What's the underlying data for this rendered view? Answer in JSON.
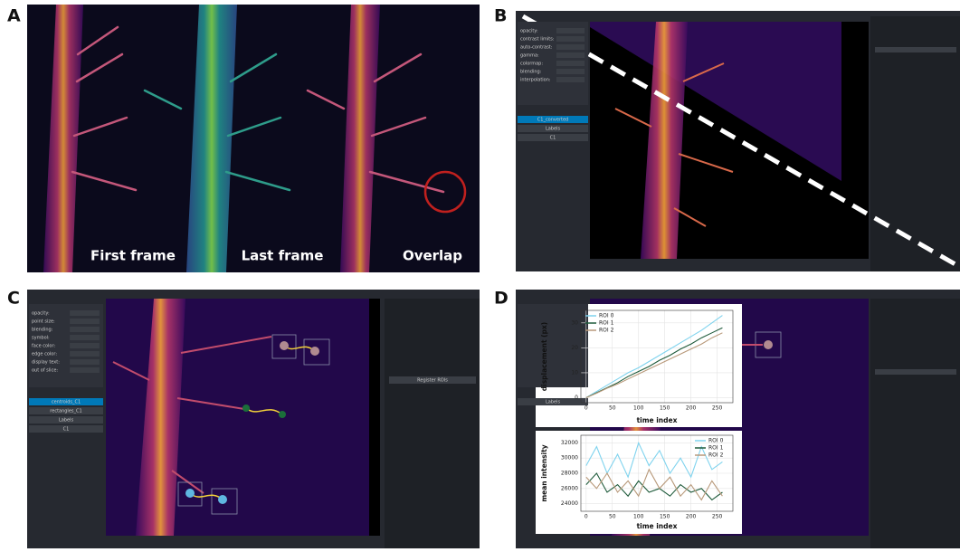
{
  "panel_a": {
    "label": "A",
    "captions": [
      "First frame",
      "Last frame",
      "Overlap"
    ]
  },
  "panel_b": {
    "label": "B",
    "controls": [
      "opacity:",
      "contrast limits:",
      "auto-contrast:",
      "gamma:",
      "colormap:",
      "blending:",
      "interpolation:"
    ],
    "layers": [
      "C1_converted",
      "Labels",
      "C1"
    ]
  },
  "panel_c": {
    "label": "C",
    "controls": [
      "opacity:",
      "point size:",
      "blending:",
      "symbol:",
      "face color:",
      "edge color:",
      "display text:",
      "out of slice:"
    ],
    "layers": [
      "centroids_C1",
      "rectangles_C1",
      "Labels",
      "C1"
    ],
    "button": "Register ROIs"
  },
  "panel_d": {
    "label": "D",
    "layers": [
      "Labels"
    ]
  },
  "chart_data": [
    {
      "type": "line",
      "ylabel": "displacement (px)",
      "xlabel": "time index",
      "x": [
        0,
        20,
        40,
        60,
        80,
        100,
        120,
        140,
        160,
        180,
        200,
        220,
        240,
        260
      ],
      "xlim": [
        -10,
        280
      ],
      "xticks": [
        0,
        50,
        100,
        150,
        200,
        250
      ],
      "ylim": [
        -2,
        35
      ],
      "yticks": [
        0,
        10,
        20,
        30
      ],
      "grid": true,
      "legend": "upper left",
      "series": [
        {
          "name": "ROI 0",
          "color": "#7fd3ee",
          "values": [
            0,
            2.5,
            5,
            7.5,
            10,
            12,
            14.5,
            17,
            19.5,
            22,
            24.5,
            27,
            30,
            33
          ]
        },
        {
          "name": "ROI 1",
          "color": "#1e5a3a",
          "values": [
            0,
            2,
            4,
            6,
            8.5,
            10.5,
            12.5,
            15,
            17,
            19.5,
            21.5,
            24,
            26,
            28
          ]
        },
        {
          "name": "ROI 2",
          "color": "#b8997a",
          "values": [
            0,
            1.8,
            3.8,
            5.5,
            7.5,
            9.5,
            11.5,
            13.5,
            15.5,
            17.5,
            19.5,
            21.5,
            24,
            26
          ]
        }
      ]
    },
    {
      "type": "line",
      "ylabel": "mean intensity",
      "xlabel": "time index",
      "x": [
        0,
        20,
        40,
        60,
        80,
        100,
        120,
        140,
        160,
        180,
        200,
        220,
        240,
        260
      ],
      "xlim": [
        -10,
        280
      ],
      "xticks": [
        0,
        50,
        100,
        150,
        200,
        250
      ],
      "ylim": [
        23000,
        33000
      ],
      "yticks": [
        24000,
        26000,
        28000,
        30000,
        32000
      ],
      "grid": true,
      "legend": "upper right",
      "series": [
        {
          "name": "ROI 0",
          "color": "#7fd3ee",
          "values": [
            29000,
            31500,
            28000,
            30500,
            27500,
            32000,
            29000,
            31000,
            28000,
            30000,
            27500,
            31500,
            28500,
            29500
          ]
        },
        {
          "name": "ROI 1",
          "color": "#1e5a3a",
          "values": [
            26500,
            28000,
            25500,
            26500,
            25000,
            27000,
            25500,
            26000,
            25000,
            26500,
            25500,
            26000,
            24500,
            25500
          ]
        },
        {
          "name": "ROI 2",
          "color": "#b8997a",
          "values": [
            27500,
            26000,
            28000,
            25500,
            27000,
            25000,
            28500,
            26000,
            27500,
            25000,
            26500,
            24500,
            27000,
            25000
          ]
        }
      ]
    }
  ]
}
